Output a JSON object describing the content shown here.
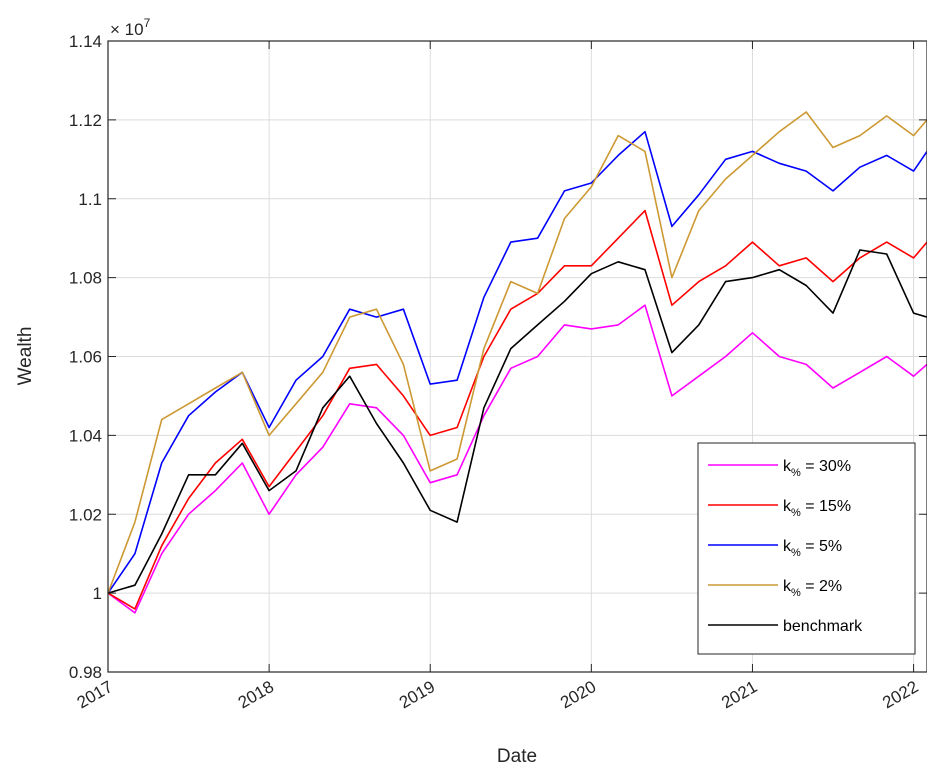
{
  "chart_data": {
    "type": "line",
    "xlabel": "Date",
    "ylabel": "Wealth",
    "y_exponent_label": "× 10",
    "y_exponent_power": "7",
    "xlim": [
      "2017-01",
      "2022-02"
    ],
    "ylim": [
      0.98,
      1.14
    ],
    "x_ticks": [
      {
        "value": "2017-01",
        "label": "2017"
      },
      {
        "value": "2018-01",
        "label": "2018"
      },
      {
        "value": "2019-01",
        "label": "2019"
      },
      {
        "value": "2020-01",
        "label": "2020"
      },
      {
        "value": "2021-01",
        "label": "2021"
      },
      {
        "value": "2022-01",
        "label": "2022"
      }
    ],
    "y_ticks": [
      {
        "value": 0.98,
        "label": "0.98"
      },
      {
        "value": 1.0,
        "label": "1"
      },
      {
        "value": 1.02,
        "label": "1.02"
      },
      {
        "value": 1.04,
        "label": "1.04"
      },
      {
        "value": 1.06,
        "label": "1.06"
      },
      {
        "value": 1.08,
        "label": "1.08"
      },
      {
        "value": 1.1,
        "label": "1.1"
      },
      {
        "value": 1.12,
        "label": "1.12"
      },
      {
        "value": 1.14,
        "label": "1.14"
      }
    ],
    "grid": true,
    "legend_position": "bottom-right",
    "x": [
      "2017-01",
      "2017-03",
      "2017-05",
      "2017-07",
      "2017-09",
      "2017-11",
      "2018-01",
      "2018-03",
      "2018-05",
      "2018-07",
      "2018-09",
      "2018-11",
      "2019-01",
      "2019-03",
      "2019-05",
      "2019-07",
      "2019-09",
      "2019-11",
      "2020-01",
      "2020-03",
      "2020-05",
      "2020-07",
      "2020-09",
      "2020-11",
      "2021-01",
      "2021-03",
      "2021-05",
      "2021-07",
      "2021-09",
      "2021-11",
      "2022-01",
      "2022-02"
    ],
    "series": [
      {
        "legend_prefix": "k",
        "legend_sub": "%",
        "legend_suffix": " = 30%",
        "color": "#ff00ff",
        "values": [
          1.0,
          0.995,
          1.01,
          1.02,
          1.026,
          1.033,
          1.02,
          1.03,
          1.037,
          1.048,
          1.047,
          1.04,
          1.028,
          1.03,
          1.045,
          1.057,
          1.06,
          1.068,
          1.067,
          1.068,
          1.073,
          1.05,
          1.055,
          1.06,
          1.066,
          1.06,
          1.058,
          1.052,
          1.056,
          1.06,
          1.055,
          1.058
        ]
      },
      {
        "legend_prefix": "k",
        "legend_sub": "%",
        "legend_suffix": " = 15%",
        "color": "#ff0000",
        "values": [
          1.0,
          0.996,
          1.012,
          1.024,
          1.033,
          1.039,
          1.027,
          1.036,
          1.045,
          1.057,
          1.058,
          1.05,
          1.04,
          1.042,
          1.06,
          1.072,
          1.076,
          1.083,
          1.083,
          1.09,
          1.097,
          1.073,
          1.079,
          1.083,
          1.089,
          1.083,
          1.085,
          1.079,
          1.085,
          1.089,
          1.085,
          1.089
        ]
      },
      {
        "legend_prefix": "k",
        "legend_sub": "%",
        "legend_suffix": " = 5%",
        "color": "#0000ff",
        "values": [
          1.0,
          1.01,
          1.033,
          1.045,
          1.051,
          1.056,
          1.042,
          1.054,
          1.06,
          1.072,
          1.07,
          1.072,
          1.053,
          1.054,
          1.075,
          1.089,
          1.09,
          1.102,
          1.104,
          1.111,
          1.117,
          1.093,
          1.101,
          1.11,
          1.112,
          1.109,
          1.107,
          1.102,
          1.108,
          1.111,
          1.107,
          1.112
        ]
      },
      {
        "legend_prefix": "k",
        "legend_sub": "%",
        "legend_suffix": " = 2%",
        "color": "#cc9933",
        "values": [
          1.0,
          1.018,
          1.044,
          1.048,
          1.052,
          1.056,
          1.04,
          1.048,
          1.056,
          1.07,
          1.072,
          1.058,
          1.031,
          1.034,
          1.062,
          1.079,
          1.076,
          1.095,
          1.103,
          1.116,
          1.112,
          1.08,
          1.097,
          1.105,
          1.111,
          1.117,
          1.122,
          1.113,
          1.116,
          1.121,
          1.116,
          1.12
        ]
      },
      {
        "legend_prefix": "benchmark",
        "legend_sub": "",
        "legend_suffix": "",
        "color": "#000000",
        "values": [
          1.0,
          1.002,
          1.015,
          1.03,
          1.03,
          1.038,
          1.026,
          1.031,
          1.047,
          1.055,
          1.043,
          1.033,
          1.021,
          1.018,
          1.047,
          1.062,
          1.068,
          1.074,
          1.081,
          1.084,
          1.082,
          1.061,
          1.068,
          1.079,
          1.08,
          1.082,
          1.078,
          1.071,
          1.087,
          1.086,
          1.071,
          1.07
        ]
      }
    ]
  }
}
